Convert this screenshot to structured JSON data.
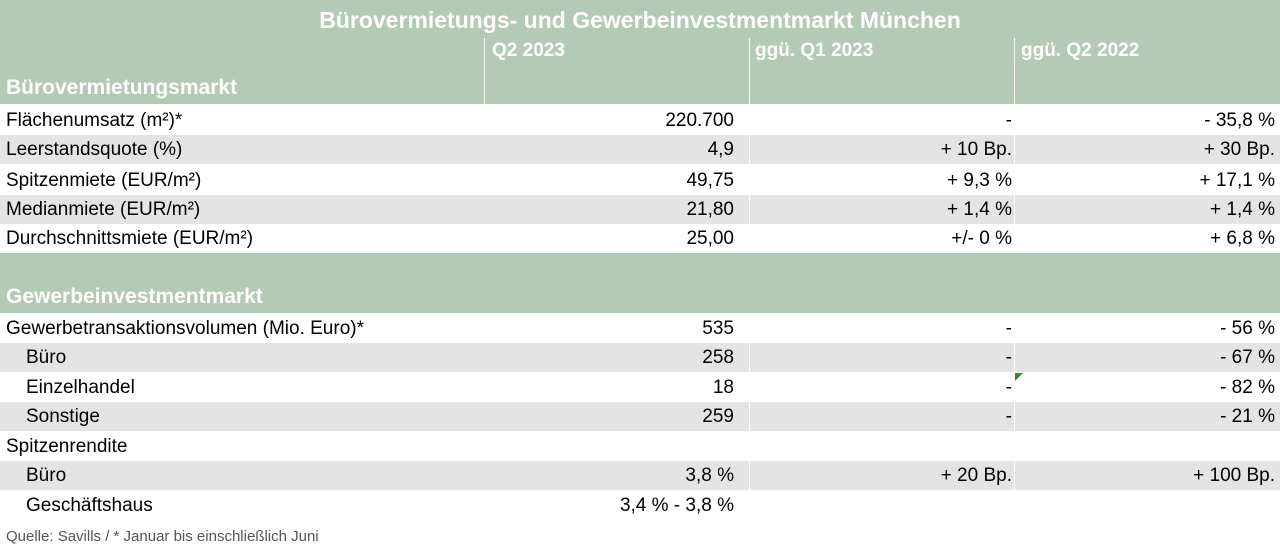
{
  "title": "Bürovermietungs- und Gewerbeinvestmentmarkt München",
  "columns": [
    "Q2 2023",
    "ggü.  Q1 2023",
    "ggü.  Q2 2022"
  ],
  "sections": {
    "office": "Bürovermietungsmarkt",
    "invest": "Gewerbeinvestmentmarkt"
  },
  "office_rows": [
    {
      "label": "Flächenumsatz (m²)*",
      "q2_2023": "220.700",
      "vs_q1_2023": "-",
      "vs_q2_2022": "- 35,8 %"
    },
    {
      "label": "Leerstandsquote (%)",
      "q2_2023": "4,9",
      "vs_q1_2023": "+ 10 Bp.",
      "vs_q2_2022": "+ 30 Bp."
    },
    {
      "label": "Spitzenmiete (EUR/m²)",
      "q2_2023": "49,75",
      "vs_q1_2023": "+ 9,3 %",
      "vs_q2_2022": "+ 17,1 %"
    },
    {
      "label": "Medianmiete (EUR/m²)",
      "q2_2023": "21,80",
      "vs_q1_2023": "+ 1,4 %",
      "vs_q2_2022": "+ 1,4 %"
    },
    {
      "label": "Durchschnittsmiete (EUR/m²)",
      "q2_2023": "25,00",
      "vs_q1_2023": "+/- 0 %",
      "vs_q2_2022": "+ 6,8 %"
    }
  ],
  "invest_rows": [
    {
      "label": "Gewerbetransaktionsvolumen (Mio. Euro)*",
      "q2_2023": "535",
      "vs_q1_2023": "-",
      "vs_q2_2022": "- 56 %"
    },
    {
      "label": "Büro",
      "q2_2023": "258",
      "vs_q1_2023": "-",
      "vs_q2_2022": "- 67 %"
    },
    {
      "label": "Einzelhandel",
      "q2_2023": "18",
      "vs_q1_2023": "-",
      "vs_q2_2022": "- 82 %"
    },
    {
      "label": "Sonstige",
      "q2_2023": "259",
      "vs_q1_2023": "-",
      "vs_q2_2022": "- 21 %"
    },
    {
      "label": "Spitzenrendite",
      "q2_2023": "",
      "vs_q1_2023": "",
      "vs_q2_2022": ""
    },
    {
      "label": "Büro",
      "q2_2023": "3,8 %",
      "vs_q1_2023": "+ 20 Bp.",
      "vs_q2_2022": "+ 100 Bp."
    },
    {
      "label": "Geschäftshaus",
      "q2_2023": "3,4 % - 3,8 %",
      "vs_q1_2023": "",
      "vs_q2_2022": ""
    }
  ],
  "source": "Quelle: Savills / * Januar bis einschließlich Juni"
}
